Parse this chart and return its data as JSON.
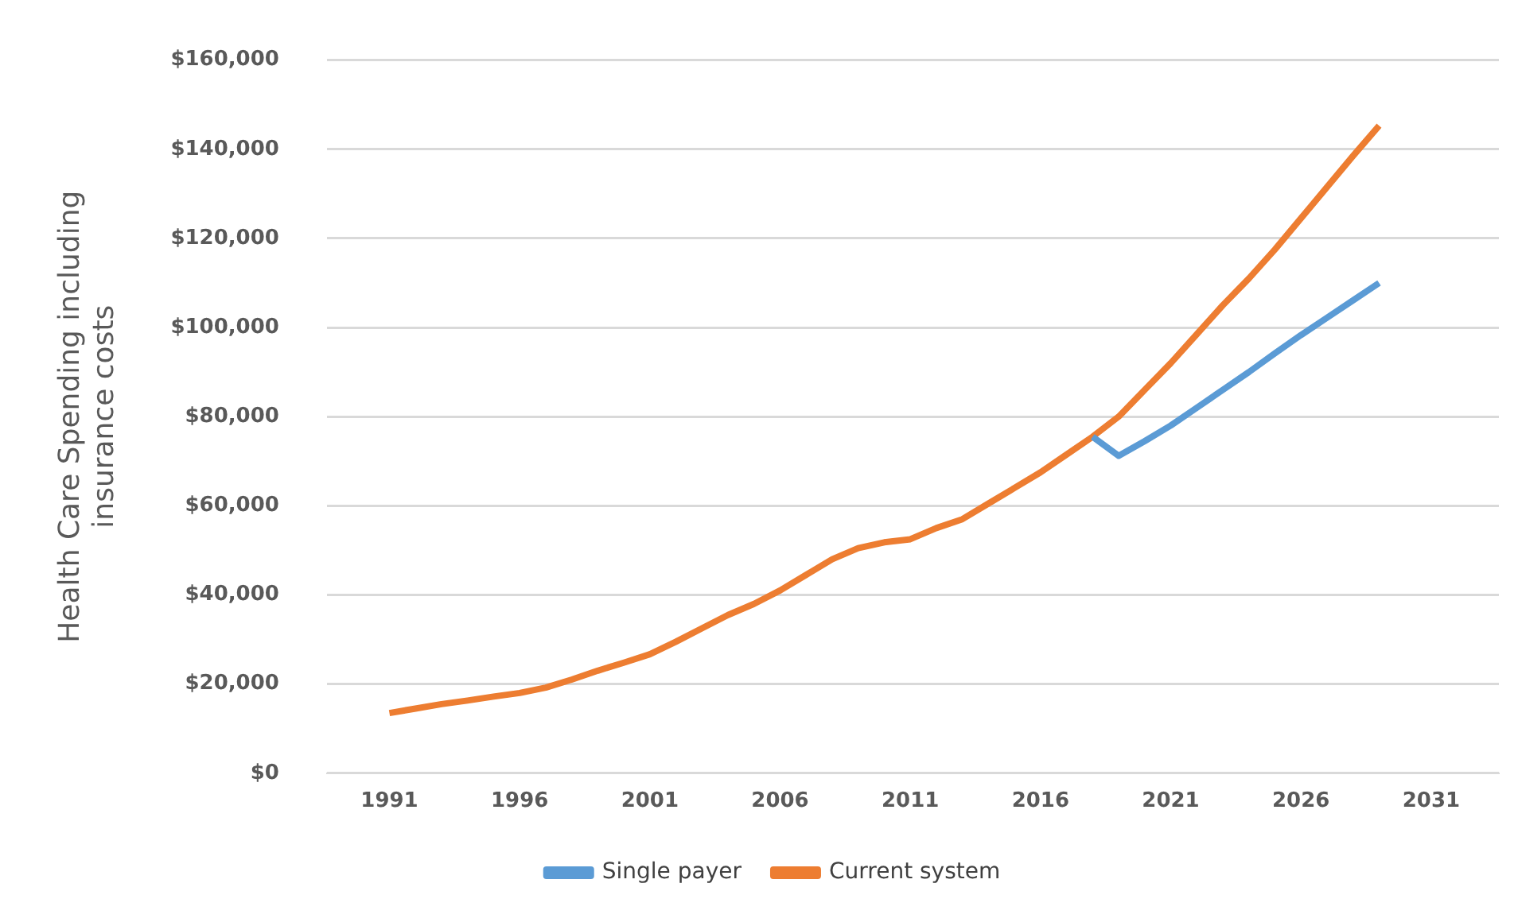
{
  "chart_data": {
    "type": "line",
    "ylabel": "Health Care Spending including insurance costs",
    "xlim": [
      1988.6,
      2033.6
    ],
    "xticks": [
      1991,
      1996,
      2001,
      2006,
      2011,
      2016,
      2021,
      2026,
      2031
    ],
    "ylim": [
      0,
      160000
    ],
    "yticks": [
      {
        "value": 0,
        "label": "$0"
      },
      {
        "value": 20000,
        "label": "$20,000"
      },
      {
        "value": 40000,
        "label": "$40,000"
      },
      {
        "value": 60000,
        "label": "$60,000"
      },
      {
        "value": 80000,
        "label": "$80,000"
      },
      {
        "value": 100000,
        "label": "$100,000"
      },
      {
        "value": 120000,
        "label": "$120,000"
      },
      {
        "value": 140000,
        "label": "$140,000"
      },
      {
        "value": 160000,
        "label": "$160,000"
      }
    ],
    "grid": "y",
    "legend": "bottom",
    "marker": "none",
    "line_style": "solid",
    "series": [
      {
        "name": "Single payer",
        "color": "#5b9bd5",
        "x": [
          2018,
          2019,
          2020,
          2021,
          2022,
          2023,
          2024,
          2025,
          2026,
          2027,
          2028,
          2029
        ],
        "values": [
          75500,
          71200,
          74500,
          78000,
          82000,
          86000,
          90000,
          94200,
          98300,
          102200,
          106100,
          110000
        ]
      },
      {
        "name": "Current system",
        "color": "#ed7d31",
        "x": [
          1991,
          1992,
          1993,
          1994,
          1995,
          1996,
          1997,
          1998,
          1999,
          2000,
          2001,
          2002,
          2003,
          2004,
          2005,
          2006,
          2007,
          2008,
          2009,
          2010,
          2011,
          2012,
          2013,
          2014,
          2015,
          2016,
          2017,
          2018,
          2019,
          2020,
          2021,
          2022,
          2023,
          2024,
          2025,
          2026,
          2027,
          2028,
          2029
        ],
        "values": [
          13500,
          14500,
          15500,
          16300,
          17200,
          18000,
          19200,
          21000,
          23000,
          24800,
          26700,
          29500,
          32500,
          35500,
          38000,
          41000,
          44500,
          48000,
          50500,
          51800,
          52500,
          55000,
          57000,
          60500,
          64000,
          67500,
          71500,
          75500,
          80000,
          86000,
          92000,
          98500,
          105000,
          111000,
          117500,
          124500,
          131500,
          138500,
          145300
        ]
      }
    ]
  }
}
